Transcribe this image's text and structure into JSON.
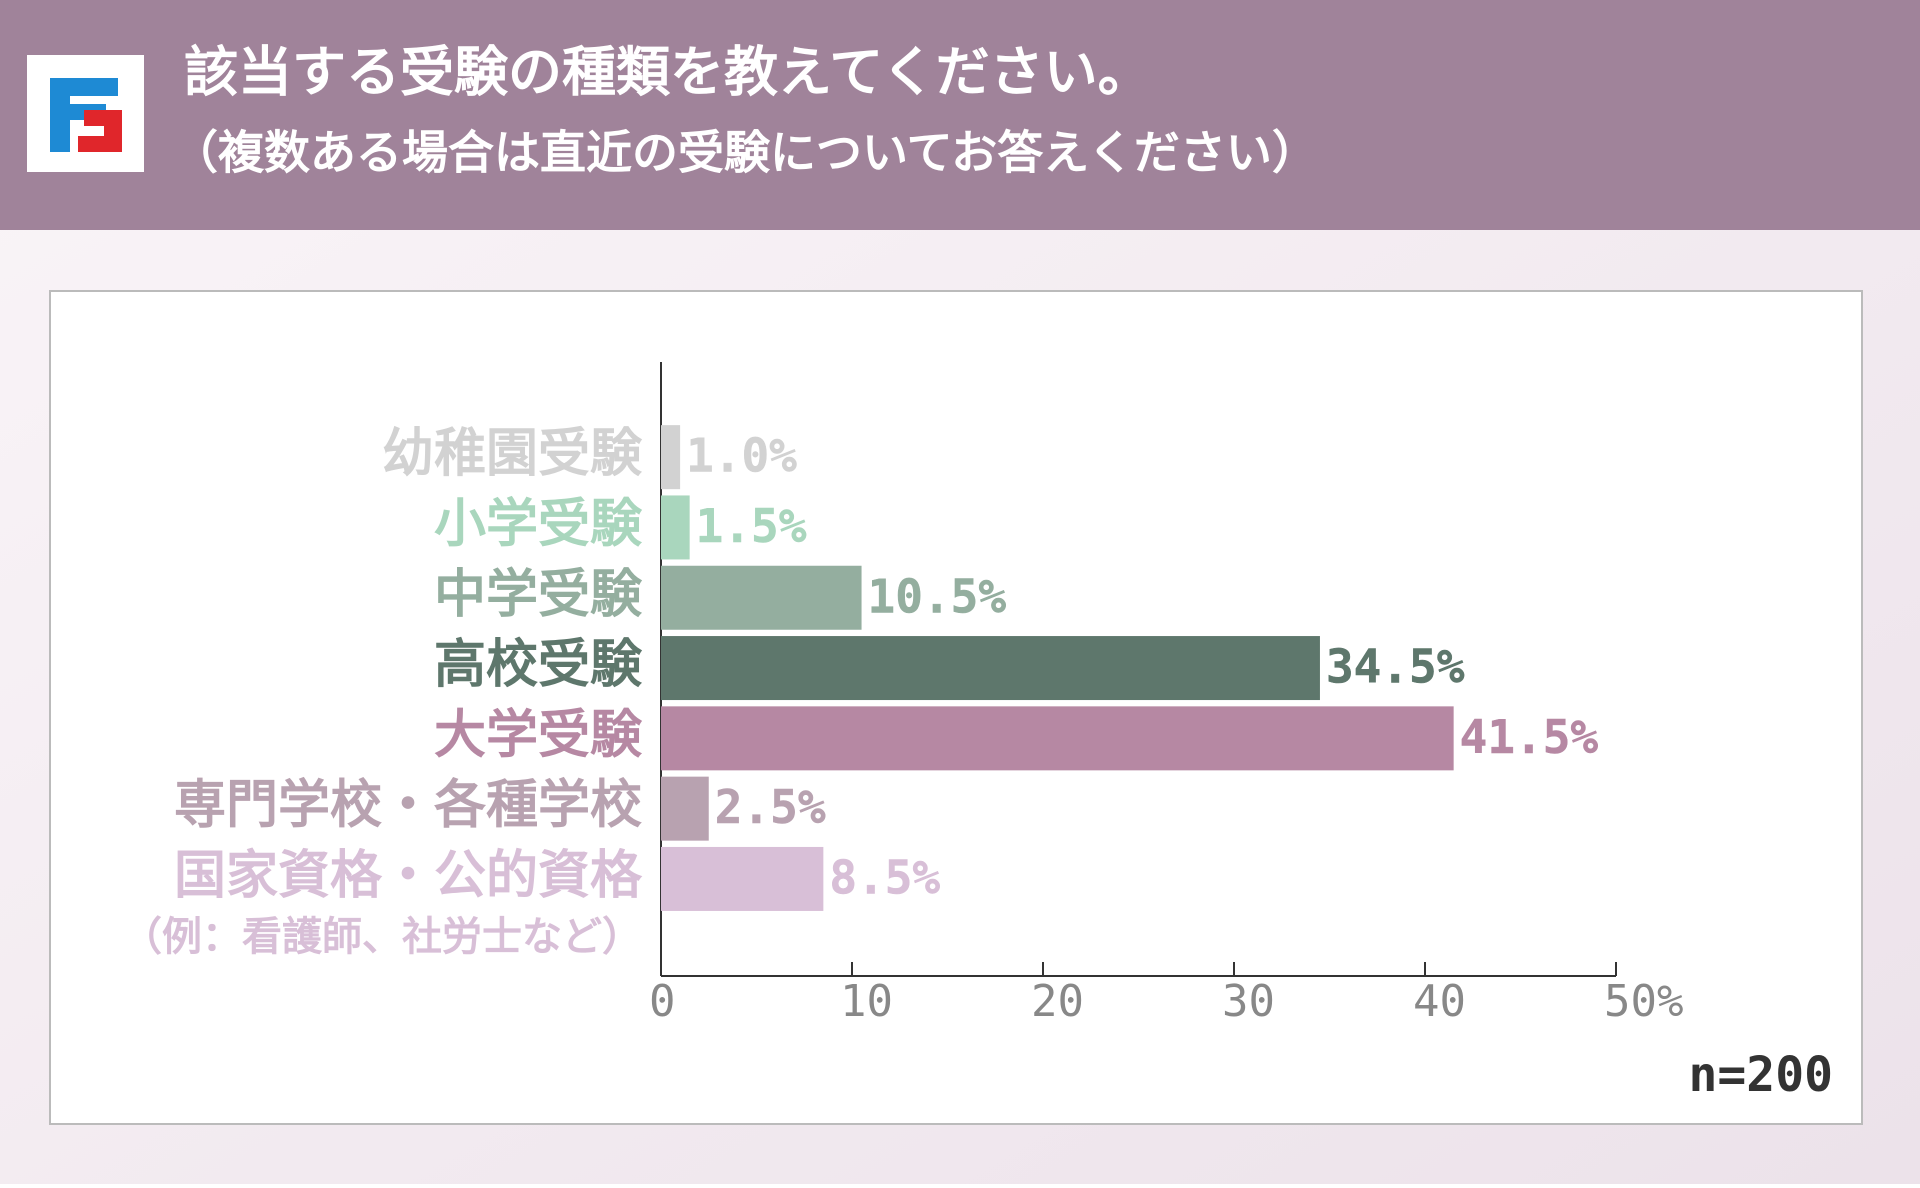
{
  "header": {
    "title": "該当する受験の種類を教えてください。",
    "subtitle": "（複数ある場合は直近の受験についてお答えください）"
  },
  "chart_data": {
    "type": "barh",
    "categories": [
      "幼稚園受験",
      "小学受験",
      "中学受験",
      "高校受験",
      "大学受験",
      "専門学校・各種学校",
      "国家資格・公的資格"
    ],
    "category_notes": [
      null,
      null,
      null,
      null,
      null,
      null,
      "（例：看護師、社労士など）"
    ],
    "values": [
      1.0,
      1.5,
      10.5,
      34.5,
      41.5,
      2.5,
      8.5
    ],
    "value_labels": [
      "1.0%",
      "1.5%",
      "10.5%",
      "34.5%",
      "41.5%",
      "2.5%",
      "8.5%"
    ],
    "colors": [
      "#d2d2d2",
      "#a9d6bd",
      "#94ae9f",
      "#5e776c",
      "#b688a3",
      "#b8a2b0",
      "#d8bfd7"
    ],
    "xlim": [
      0,
      50
    ],
    "xticks": [
      0,
      10,
      20,
      30,
      40,
      {
        "value": 50,
        "label": "50%"
      }
    ],
    "annotation": "n=200"
  }
}
